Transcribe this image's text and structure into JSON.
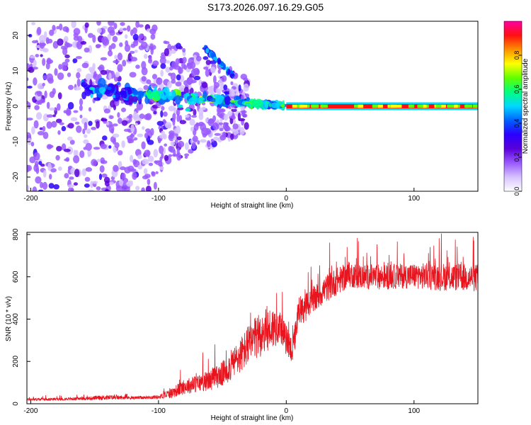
{
  "title": "S173.2026.097.16.29.G05",
  "colors": {
    "snr_line": "#e8141e",
    "spectro_low": "#e8d8ff",
    "spectro_mid": "#7a2cff",
    "colorbar": [
      "#ffffff",
      "#d6c2ff",
      "#9a59ff",
      "#5a00d9",
      "#2b00ff",
      "#0060ff",
      "#00d8ff",
      "#00ff80",
      "#60ff00",
      "#ffff00",
      "#ff9000",
      "#ff1010",
      "#ff00a0"
    ]
  },
  "chart_data": [
    {
      "type": "heatmap",
      "name": "spectrogram",
      "xlabel": "Height of straight line (km)",
      "ylabel": "Frequency (Hz)",
      "xlim": [
        -203,
        150
      ],
      "ylim": [
        -24,
        24
      ],
      "xticks": [
        -200,
        -100,
        0,
        100
      ],
      "xtick_labels": [
        "-200",
        "-100",
        "0",
        "100"
      ],
      "yticks": [
        -20,
        -10,
        0,
        10,
        20
      ],
      "ytick_labels": [
        "-20",
        "-10",
        "0",
        "10",
        "20"
      ],
      "features": [
        {
          "label": "scattered low-amplitude noise",
          "x_range": [
            -203,
            -100
          ],
          "freq_range": [
            -24,
            24
          ],
          "amplitude": 0.15
        },
        {
          "label": "diffuse noise band",
          "x_range": [
            -100,
            -30
          ],
          "freq_range": [
            -18,
            20
          ],
          "amplitude": 0.15
        },
        {
          "label": "main signal branch",
          "x_range": [
            -160,
            0
          ],
          "freq_range": [
            -8,
            8
          ],
          "amplitude": 0.35
        },
        {
          "label": "upper branch",
          "x_range": [
            -65,
            -40
          ],
          "freq_range": [
            8,
            18
          ],
          "amplitude": 0.25
        },
        {
          "label": "carrier line",
          "x_range": [
            0,
            150
          ],
          "freq_range": [
            -0.5,
            0.5
          ],
          "amplitude": 0.95
        }
      ],
      "colorbar": {
        "label": "Normalized spectral amplitude",
        "range": [
          0,
          1
        ],
        "ticks": [
          0.0,
          0.2,
          0.4,
          0.6,
          0.8
        ],
        "tick_labels": [
          "0.0",
          "0.2",
          "0.4",
          "0.6",
          "0.8"
        ]
      }
    },
    {
      "type": "line",
      "name": "snr",
      "xlabel": "Height of straight line (km)",
      "ylabel": "SNR (10 * v/v)",
      "xlim": [
        -203,
        150
      ],
      "ylim": [
        0,
        810
      ],
      "xticks": [
        -200,
        -100,
        0,
        100
      ],
      "xtick_labels": [
        "-200",
        "-100",
        "0",
        "100"
      ],
      "yticks": [
        0,
        200,
        400,
        600,
        800
      ],
      "ytick_labels": [
        "0",
        "200",
        "400",
        "600",
        "800"
      ],
      "series": [
        {
          "name": "SNR",
          "x": [
            -203,
            -180,
            -160,
            -140,
            -120,
            -100,
            -90,
            -80,
            -70,
            -60,
            -50,
            -40,
            -30,
            -20,
            -10,
            -5,
            0,
            5,
            10,
            20,
            30,
            40,
            50,
            60,
            80,
            100,
            120,
            150
          ],
          "mean": [
            20,
            22,
            24,
            30,
            28,
            32,
            50,
            80,
            95,
            110,
            140,
            200,
            270,
            330,
            360,
            370,
            300,
            250,
            430,
            480,
            540,
            580,
            610,
            600,
            600,
            605,
            600,
            595
          ],
          "amp": [
            10,
            10,
            12,
            20,
            12,
            15,
            40,
            60,
            70,
            80,
            100,
            130,
            160,
            180,
            170,
            120,
            120,
            110,
            110,
            110,
            110,
            110,
            100,
            100,
            100,
            100,
            110,
            110
          ]
        }
      ]
    }
  ]
}
